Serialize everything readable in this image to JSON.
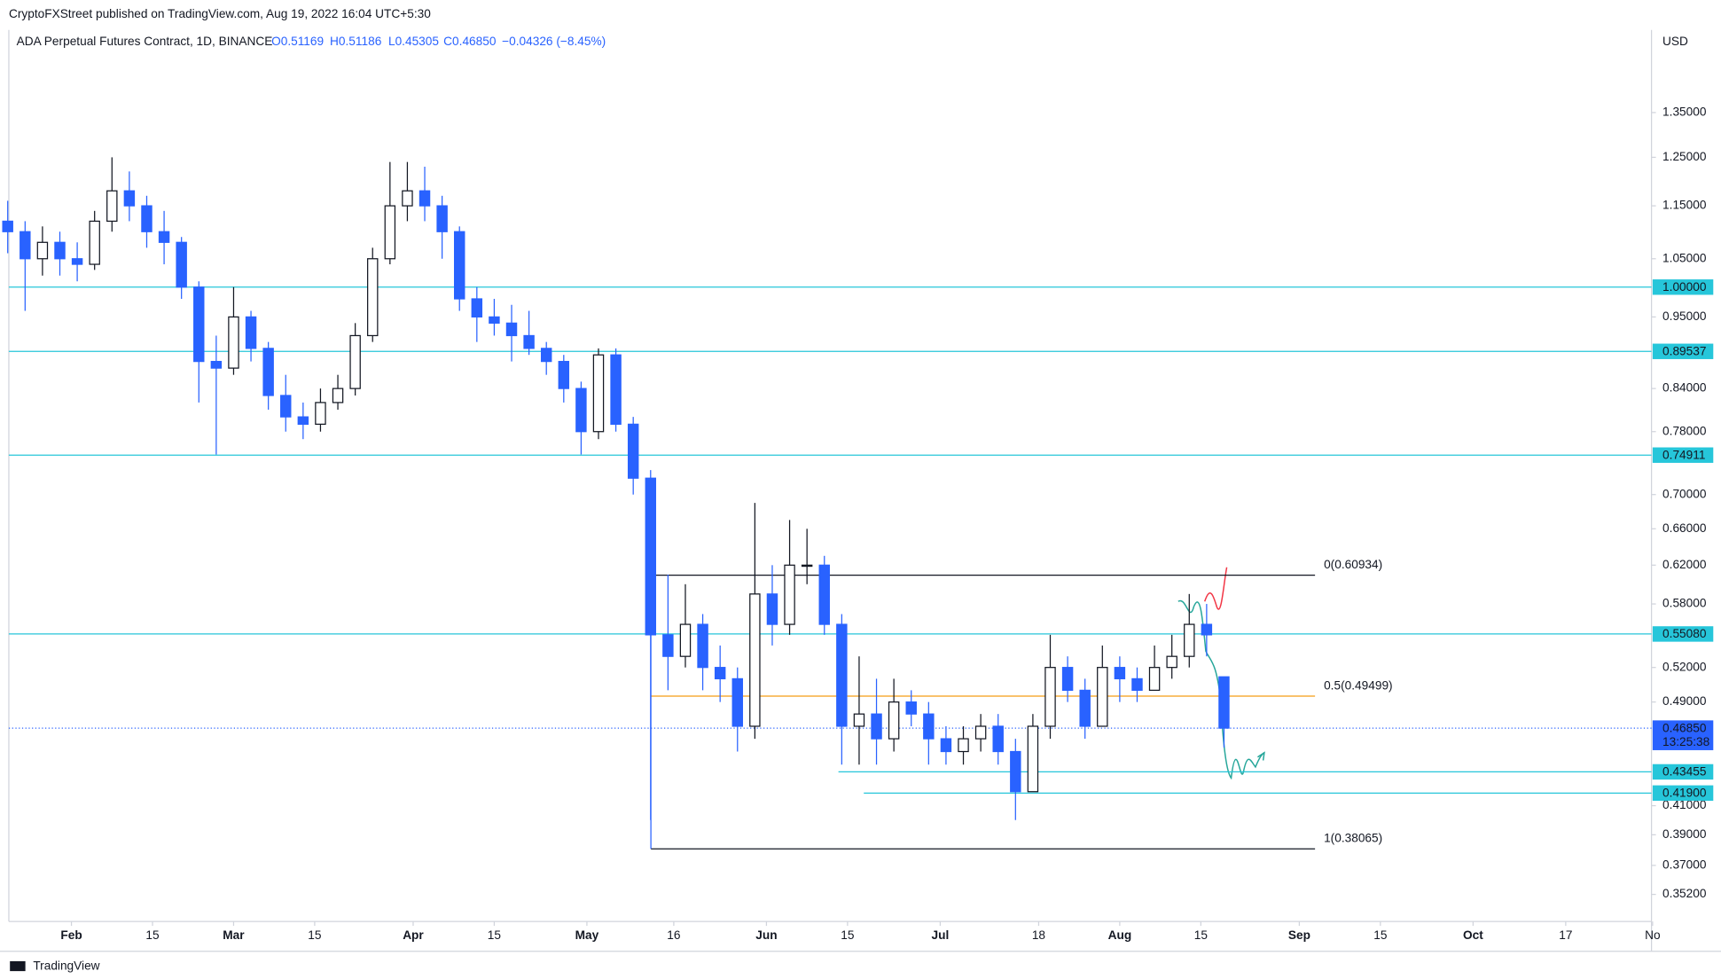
{
  "header": {
    "publisher": "CryptoFXStreet published on TradingView.com, Aug 19, 2022 16:04 UTC+5:30",
    "symbol": "ADA Perpetual Futures Contract, 1D, BINANCE",
    "o": "O0.51169",
    "h": "H0.51186",
    "l": "L0.45305",
    "c": "C0.46850",
    "change": "−0.04326 (−8.45%)",
    "footer": "TradingView"
  },
  "chart_data": {
    "type": "candlestick",
    "currency": "USD",
    "log_scale": true,
    "x": [
      "01-21",
      "01-24",
      "01-27",
      "01-30",
      "02-02",
      "02-05",
      "02-08",
      "02-11",
      "02-14",
      "02-17",
      "02-20",
      "02-23",
      "02-26",
      "03-01",
      "03-04",
      "03-07",
      "03-10",
      "03-13",
      "03-16",
      "03-19",
      "03-22",
      "03-25",
      "03-28",
      "03-31",
      "04-03",
      "04-06",
      "04-09",
      "04-12",
      "04-15",
      "04-18",
      "04-21",
      "04-24",
      "04-27",
      "04-30",
      "05-03",
      "05-06",
      "05-09",
      "05-12",
      "05-15",
      "05-18",
      "05-21",
      "05-24",
      "05-27",
      "05-30",
      "06-02",
      "06-05",
      "06-08",
      "06-11",
      "06-14",
      "06-17",
      "06-20",
      "06-23",
      "06-26",
      "06-29",
      "07-02",
      "07-05",
      "07-08",
      "07-11",
      "07-14",
      "07-17",
      "07-20",
      "07-23",
      "07-26",
      "07-29",
      "08-01",
      "08-04",
      "08-07",
      "08-10",
      "08-13",
      "08-16",
      "08-19"
    ],
    "open": [
      1.12,
      1.1,
      1.05,
      1.08,
      1.05,
      1.04,
      1.12,
      1.18,
      1.15,
      1.1,
      1.08,
      1.0,
      0.88,
      0.87,
      0.95,
      0.9,
      0.83,
      0.8,
      0.79,
      0.82,
      0.84,
      0.92,
      1.05,
      1.15,
      1.18,
      1.15,
      1.1,
      0.98,
      0.95,
      0.94,
      0.92,
      0.9,
      0.88,
      0.84,
      0.78,
      0.89,
      0.79,
      0.72,
      0.55,
      0.53,
      0.56,
      0.52,
      0.51,
      0.47,
      0.59,
      0.56,
      0.62,
      0.62,
      0.56,
      0.47,
      0.48,
      0.46,
      0.49,
      0.48,
      0.46,
      0.45,
      0.46,
      0.47,
      0.45,
      0.42,
      0.47,
      0.52,
      0.5,
      0.47,
      0.52,
      0.51,
      0.5,
      0.52,
      0.53,
      0.56,
      0.51169
    ],
    "high": [
      1.16,
      1.12,
      1.11,
      1.1,
      1.08,
      1.14,
      1.25,
      1.22,
      1.17,
      1.14,
      1.09,
      1.01,
      0.92,
      1.0,
      0.96,
      0.91,
      0.86,
      0.82,
      0.84,
      0.86,
      0.94,
      1.07,
      1.24,
      1.24,
      1.23,
      1.17,
      1.11,
      1.0,
      0.98,
      0.97,
      0.96,
      0.91,
      0.89,
      0.85,
      0.9,
      0.9,
      0.8,
      0.73,
      0.61,
      0.6,
      0.57,
      0.54,
      0.52,
      0.69,
      0.62,
      0.67,
      0.66,
      0.63,
      0.57,
      0.53,
      0.51,
      0.51,
      0.5,
      0.49,
      0.47,
      0.47,
      0.48,
      0.48,
      0.46,
      0.48,
      0.55,
      0.53,
      0.51,
      0.54,
      0.53,
      0.52,
      0.54,
      0.55,
      0.59,
      0.58,
      0.51186
    ],
    "low": [
      1.06,
      0.96,
      1.02,
      1.02,
      1.01,
      1.03,
      1.1,
      1.12,
      1.07,
      1.04,
      0.98,
      0.82,
      0.75,
      0.86,
      0.88,
      0.81,
      0.78,
      0.77,
      0.78,
      0.81,
      0.83,
      0.91,
      1.04,
      1.12,
      1.12,
      1.05,
      0.96,
      0.91,
      0.92,
      0.88,
      0.89,
      0.86,
      0.82,
      0.75,
      0.77,
      0.78,
      0.7,
      0.4,
      0.5,
      0.52,
      0.5,
      0.49,
      0.45,
      0.46,
      0.54,
      0.55,
      0.6,
      0.55,
      0.44,
      0.44,
      0.44,
      0.45,
      0.47,
      0.44,
      0.44,
      0.44,
      0.45,
      0.44,
      0.4,
      0.42,
      0.46,
      0.49,
      0.46,
      0.47,
      0.49,
      0.49,
      0.5,
      0.51,
      0.52,
      0.53,
      0.45305
    ],
    "close": [
      1.1,
      1.05,
      1.08,
      1.05,
      1.04,
      1.12,
      1.18,
      1.15,
      1.1,
      1.08,
      1.0,
      0.88,
      0.87,
      0.95,
      0.9,
      0.83,
      0.8,
      0.79,
      0.82,
      0.84,
      0.92,
      1.05,
      1.15,
      1.18,
      1.15,
      1.1,
      0.98,
      0.95,
      0.94,
      0.92,
      0.9,
      0.88,
      0.84,
      0.78,
      0.89,
      0.79,
      0.72,
      0.55,
      0.53,
      0.56,
      0.52,
      0.51,
      0.47,
      0.59,
      0.56,
      0.62,
      0.62,
      0.56,
      0.47,
      0.48,
      0.46,
      0.49,
      0.48,
      0.46,
      0.45,
      0.46,
      0.47,
      0.45,
      0.42,
      0.47,
      0.52,
      0.5,
      0.47,
      0.52,
      0.51,
      0.5,
      0.52,
      0.53,
      0.56,
      0.55,
      0.4685
    ],
    "up_color": "#ffffff",
    "down_color": "#2962ff",
    "ylim": [
      0.336,
      1.556
    ],
    "yticks": [
      {
        "value": 1.35,
        "label": "1.35000"
      },
      {
        "value": 1.25,
        "label": "1.25000"
      },
      {
        "value": 1.15,
        "label": "1.15000"
      },
      {
        "value": 1.05,
        "label": "1.05000"
      },
      {
        "value": 0.95,
        "label": "0.95000"
      },
      {
        "value": 0.84,
        "label": "0.84000"
      },
      {
        "value": 0.78,
        "label": "0.78000"
      },
      {
        "value": 0.7,
        "label": "0.70000"
      },
      {
        "value": 0.66,
        "label": "0.66000"
      },
      {
        "value": 0.62,
        "label": "0.62000"
      },
      {
        "value": 0.58,
        "label": "0.58000"
      },
      {
        "value": 0.52,
        "label": "0.52000"
      },
      {
        "value": 0.49,
        "label": "0.49000"
      },
      {
        "value": 0.41,
        "label": "0.41000"
      },
      {
        "value": 0.39,
        "label": "0.39000"
      },
      {
        "value": 0.37,
        "label": "0.37000"
      },
      {
        "value": 0.352,
        "label": "0.35200"
      }
    ],
    "xticks": [
      {
        "value": "02-01",
        "label": "Feb"
      },
      {
        "value": "02-15",
        "label": "15"
      },
      {
        "value": "03-01",
        "label": "Mar"
      },
      {
        "value": "03-15",
        "label": "15"
      },
      {
        "value": "04-01",
        "label": "Apr"
      },
      {
        "value": "04-15",
        "label": "15"
      },
      {
        "value": "05-01",
        "label": "May"
      },
      {
        "value": "05-16",
        "label": "16"
      },
      {
        "value": "06-01",
        "label": "Jun"
      },
      {
        "value": "06-15",
        "label": "15"
      },
      {
        "value": "07-01",
        "label": "Jul"
      },
      {
        "value": "07-18",
        "label": "18"
      },
      {
        "value": "08-01",
        "label": "Aug"
      },
      {
        "value": "08-15",
        "label": "15"
      },
      {
        "value": "09-01",
        "label": "Sep"
      },
      {
        "value": "09-15",
        "label": "15"
      },
      {
        "value": "10-01",
        "label": "Oct"
      },
      {
        "value": "10-17",
        "label": "17"
      },
      {
        "value": "11-01",
        "label": "No"
      }
    ],
    "levels": [
      {
        "value": 1.0,
        "label": "1.00000"
      },
      {
        "value": 0.89537,
        "label": "0.89537"
      },
      {
        "value": 0.74911,
        "label": "0.74911"
      },
      {
        "value": 0.5508,
        "label": "0.55080"
      },
      {
        "value": 0.43455,
        "label": "0.43455"
      },
      {
        "value": 0.419,
        "label": "0.41900"
      }
    ],
    "level_color": "#26c6da",
    "fib": [
      {
        "value": 0.60934,
        "label": "0(0.60934)",
        "color": "#131722"
      },
      {
        "value": 0.49499,
        "label": "0.5(0.49499)",
        "color": "#f59d14"
      },
      {
        "value": 0.38065,
        "label": "1(0.38065)",
        "color": "#131722"
      }
    ],
    "last_price": {
      "value": 0.4685,
      "label": "0.46850",
      "countdown": "13:25:38",
      "color": "#2962ff"
    }
  }
}
